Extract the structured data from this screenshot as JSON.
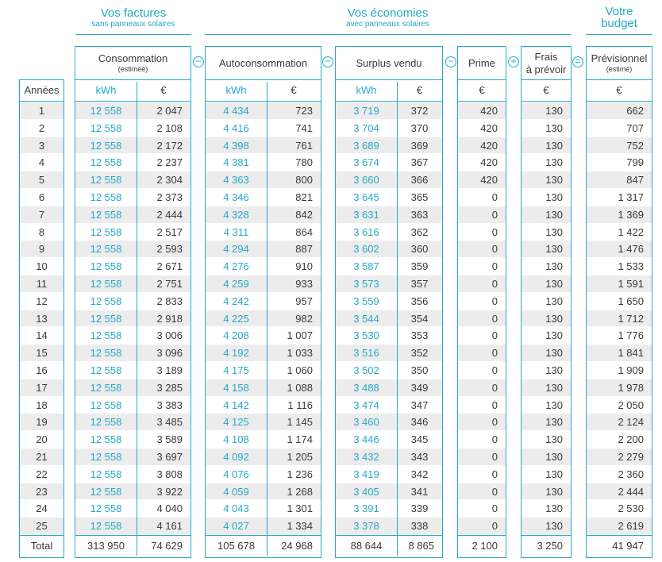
{
  "groups": {
    "factures": {
      "title": "Vos factures",
      "subtitle": "sans panneaux solaires"
    },
    "economies": {
      "title": "Vos économies",
      "subtitle": "avec panneaux solaires"
    },
    "budget": {
      "title_line1": "Votre",
      "title_line2": "budget"
    }
  },
  "headers": {
    "consommation": {
      "label": "Consommation",
      "sub": "(estimée)"
    },
    "autoconsommation": {
      "label": "Autoconsommation"
    },
    "surplus": {
      "label": "Surplus vendu"
    },
    "prime": {
      "label": "Prime"
    },
    "frais": {
      "label_line1": "Frais",
      "label_line2": "à prévoir"
    },
    "previsionnel": {
      "label": "Prévisionnel",
      "sub": "(estimé)"
    }
  },
  "operators": {
    "op1": "−",
    "op2": "−",
    "op3": "−",
    "op4": "+",
    "op5": "="
  },
  "units": {
    "annees": "Années",
    "kwh": "kWh",
    "euro": "€"
  },
  "rows": [
    [
      "1",
      "12 558",
      "2 047",
      "4 434",
      "723",
      "3 719",
      "372",
      "420",
      "130",
      "662"
    ],
    [
      "2",
      "12 558",
      "2 108",
      "4 416",
      "741",
      "3 704",
      "370",
      "420",
      "130",
      "707"
    ],
    [
      "3",
      "12 558",
      "2 172",
      "4 398",
      "761",
      "3 689",
      "369",
      "420",
      "130",
      "752"
    ],
    [
      "4",
      "12 558",
      "2 237",
      "4 381",
      "780",
      "3 674",
      "367",
      "420",
      "130",
      "799"
    ],
    [
      "5",
      "12 558",
      "2 304",
      "4 363",
      "800",
      "3 660",
      "366",
      "420",
      "130",
      "847"
    ],
    [
      "6",
      "12 558",
      "2 373",
      "4 346",
      "821",
      "3 645",
      "365",
      "0",
      "130",
      "1 317"
    ],
    [
      "7",
      "12 558",
      "2 444",
      "4 328",
      "842",
      "3 631",
      "363",
      "0",
      "130",
      "1 369"
    ],
    [
      "8",
      "12 558",
      "2 517",
      "4 311",
      "864",
      "3 616",
      "362",
      "0",
      "130",
      "1 422"
    ],
    [
      "9",
      "12 558",
      "2 593",
      "4 294",
      "887",
      "3 602",
      "360",
      "0",
      "130",
      "1 476"
    ],
    [
      "10",
      "12 558",
      "2 671",
      "4 276",
      "910",
      "3 587",
      "359",
      "0",
      "130",
      "1 533"
    ],
    [
      "11",
      "12 558",
      "2 751",
      "4 259",
      "933",
      "3 573",
      "357",
      "0",
      "130",
      "1 591"
    ],
    [
      "12",
      "12 558",
      "2 833",
      "4 242",
      "957",
      "3 559",
      "356",
      "0",
      "130",
      "1 650"
    ],
    [
      "13",
      "12 558",
      "2 918",
      "4 225",
      "982",
      "3 544",
      "354",
      "0",
      "130",
      "1 712"
    ],
    [
      "14",
      "12 558",
      "3 006",
      "4 208",
      "1 007",
      "3 530",
      "353",
      "0",
      "130",
      "1 776"
    ],
    [
      "15",
      "12 558",
      "3 096",
      "4 192",
      "1 033",
      "3 516",
      "352",
      "0",
      "130",
      "1 841"
    ],
    [
      "16",
      "12 558",
      "3 189",
      "4 175",
      "1 060",
      "3 502",
      "350",
      "0",
      "130",
      "1 909"
    ],
    [
      "17",
      "12 558",
      "3 285",
      "4 158",
      "1 088",
      "3 488",
      "349",
      "0",
      "130",
      "1 978"
    ],
    [
      "18",
      "12 558",
      "3 383",
      "4 142",
      "1 116",
      "3 474",
      "347",
      "0",
      "130",
      "2 050"
    ],
    [
      "19",
      "12 558",
      "3 485",
      "4 125",
      "1 145",
      "3 460",
      "346",
      "0",
      "130",
      "2 124"
    ],
    [
      "20",
      "12 558",
      "3 589",
      "4 108",
      "1 174",
      "3 446",
      "345",
      "0",
      "130",
      "2 200"
    ],
    [
      "21",
      "12 558",
      "3 697",
      "4 092",
      "1 205",
      "3 432",
      "343",
      "0",
      "130",
      "2 279"
    ],
    [
      "22",
      "12 558",
      "3 808",
      "4 076",
      "1 236",
      "3 419",
      "342",
      "0",
      "130",
      "2 360"
    ],
    [
      "23",
      "12 558",
      "3 922",
      "4 059",
      "1 268",
      "3 405",
      "341",
      "0",
      "130",
      "2 444"
    ],
    [
      "24",
      "12 558",
      "4 040",
      "4 043",
      "1 301",
      "3 391",
      "339",
      "0",
      "130",
      "2 530"
    ],
    [
      "25",
      "12 558",
      "4 161",
      "4 027",
      "1 334",
      "3 378",
      "338",
      "0",
      "130",
      "2 619"
    ]
  ],
  "total": [
    "Total",
    "313 950",
    "74 629",
    "105 678",
    "24 968",
    "88 644",
    "8 865",
    "2 100",
    "3 250",
    "41 947"
  ]
}
